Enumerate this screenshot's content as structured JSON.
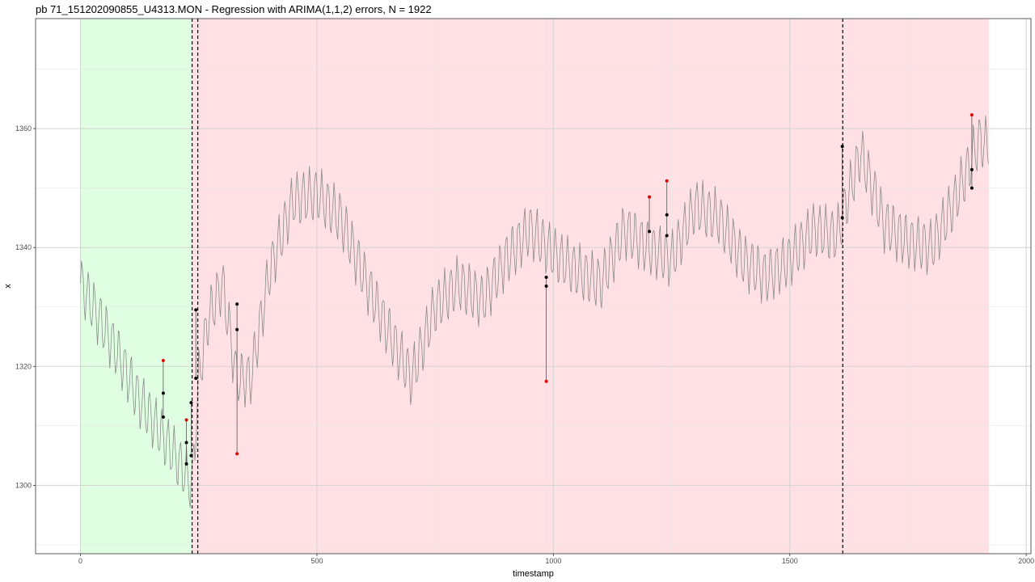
{
  "chart_data": {
    "type": "line",
    "title": "pb 71_151202090855_U4313.MON - Regression with ARIMA(1,1,2) errors, N = 1922",
    "xlabel": "timestamp",
    "ylabel": "x",
    "xlim": [
      -95,
      2010
    ],
    "ylim": [
      1288.5,
      1378.5
    ],
    "x_ticks": [
      0,
      500,
      1000,
      1500,
      2000
    ],
    "x_tick_labels": [
      "0",
      "500",
      "1000",
      "1500",
      "2000"
    ],
    "y_ticks": [
      1300,
      1320,
      1340,
      1360
    ],
    "y_tick_labels": [
      "1300",
      "1320",
      "1340",
      "1360"
    ],
    "grid": true,
    "legend": "none",
    "regions": [
      {
        "name": "training-window",
        "x_start": 0,
        "x_end": 236,
        "color": "#e0ffe2"
      },
      {
        "name": "monitoring-window",
        "x_start": 236,
        "x_end": 1921,
        "color": "#ffe0e4"
      }
    ],
    "vertical_lines": [
      236,
      248,
      1612
    ],
    "series": [
      {
        "style": "oscillating",
        "color": "#8a8a8a",
        "amplitude": 4.2,
        "period_steps": 13,
        "trend": [
          [
            0,
            1334
          ],
          [
            40,
            1328
          ],
          [
            80,
            1322
          ],
          [
            120,
            1315
          ],
          [
            160,
            1310
          ],
          [
            200,
            1305
          ],
          [
            236,
            1300
          ],
          [
            250,
            1318
          ],
          [
            270,
            1328
          ],
          [
            300,
            1334
          ],
          [
            330,
            1318
          ],
          [
            360,
            1318
          ],
          [
            400,
            1336
          ],
          [
            450,
            1348
          ],
          [
            500,
            1349
          ],
          [
            550,
            1345
          ],
          [
            600,
            1335
          ],
          [
            650,
            1326
          ],
          [
            700,
            1318
          ],
          [
            750,
            1330
          ],
          [
            800,
            1334
          ],
          [
            850,
            1331
          ],
          [
            900,
            1338
          ],
          [
            950,
            1343
          ],
          [
            1000,
            1339
          ],
          [
            1050,
            1336
          ],
          [
            1100,
            1334
          ],
          [
            1150,
            1343
          ],
          [
            1200,
            1340
          ],
          [
            1250,
            1338
          ],
          [
            1300,
            1347
          ],
          [
            1350,
            1345
          ],
          [
            1400,
            1338
          ],
          [
            1450,
            1335
          ],
          [
            1500,
            1338
          ],
          [
            1550,
            1343
          ],
          [
            1600,
            1342
          ],
          [
            1650,
            1356
          ],
          [
            1700,
            1344
          ],
          [
            1750,
            1341
          ],
          [
            1800,
            1340
          ],
          [
            1850,
            1348
          ],
          [
            1900,
            1358
          ],
          [
            1921,
            1357
          ]
        ]
      }
    ],
    "outliers": [
      {
        "x": 175,
        "black": [
          1315.5,
          1311.5
        ],
        "red": 1321
      },
      {
        "x": 224,
        "black": [
          1307.2,
          1303.6
        ],
        "red": 1311
      },
      {
        "x": 234,
        "black": [
          1313.9,
          1305.0
        ]
      },
      {
        "x": 244,
        "black": [
          1329.5,
          1318.0
        ]
      },
      {
        "x": 331,
        "black": [
          1330.5,
          1326.2
        ],
        "red": 1305.3
      },
      {
        "x": 985,
        "black": [
          1335.0,
          1333.5
        ],
        "red": 1317.5
      },
      {
        "x": 1203,
        "black": [
          1342.7
        ],
        "red": 1348.5
      },
      {
        "x": 1240,
        "black": [
          1345.5,
          1342.0
        ],
        "red": 1351.2
      },
      {
        "x": 1611,
        "black": [
          1357.0,
          1345.0
        ]
      },
      {
        "x": 1885,
        "black": [
          1353.1,
          1350.0
        ],
        "red": 1362.3
      }
    ]
  }
}
